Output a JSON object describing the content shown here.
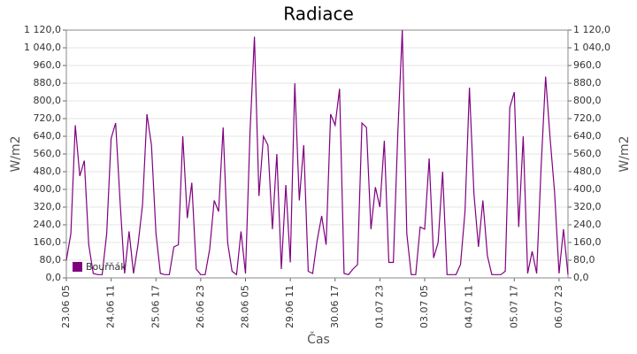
{
  "chart_data": {
    "type": "line",
    "title": "Radiace",
    "x_label": "Čas",
    "y_label": "W/m2",
    "categories": [
      "23.06 05",
      null,
      null,
      null,
      null,
      null,
      null,
      null,
      null,
      null,
      "24.06 11",
      null,
      null,
      null,
      null,
      null,
      null,
      null,
      null,
      null,
      "25.06 17",
      null,
      null,
      null,
      null,
      null,
      null,
      null,
      null,
      null,
      "26.06 23",
      null,
      null,
      null,
      null,
      null,
      null,
      null,
      null,
      null,
      "28.06 05",
      null,
      null,
      null,
      null,
      null,
      null,
      null,
      null,
      null,
      "29.06 11",
      null,
      null,
      null,
      null,
      null,
      null,
      null,
      null,
      null,
      "30.06 17",
      null,
      null,
      null,
      null,
      null,
      null,
      null,
      null,
      null,
      "01.07 23",
      null,
      null,
      null,
      null,
      null,
      null,
      null,
      null,
      null,
      "03.07 05",
      null,
      null,
      null,
      null,
      null,
      null,
      null,
      null,
      null,
      "04.07 11",
      null,
      null,
      null,
      null,
      null,
      null,
      null,
      null,
      null,
      "05.07 17",
      null,
      null,
      null,
      null,
      null,
      null,
      null,
      null,
      null,
      "06.07 23",
      null,
      null
    ],
    "series": [
      {
        "name": "Bouřňák",
        "color": "#800080",
        "values": [
          80,
          200,
          690,
          460,
          530,
          150,
          20,
          15,
          15,
          200,
          630,
          700,
          340,
          20,
          210,
          20,
          150,
          330,
          740,
          600,
          200,
          20,
          15,
          15,
          140,
          150,
          640,
          270,
          430,
          40,
          15,
          15,
          130,
          350,
          300,
          680,
          160,
          30,
          15,
          210,
          20,
          660,
          1090,
          370,
          640,
          600,
          220,
          560,
          40,
          420,
          70,
          880,
          350,
          600,
          30,
          20,
          170,
          280,
          150,
          740,
          690,
          855,
          20,
          15,
          40,
          60,
          700,
          680,
          220,
          410,
          320,
          620,
          70,
          70,
          650,
          1120,
          200,
          15,
          15,
          230,
          220,
          540,
          90,
          160,
          480,
          15,
          15,
          15,
          60,
          300,
          860,
          380,
          140,
          350,
          100,
          15,
          15,
          15,
          30,
          770,
          840,
          230,
          640,
          20,
          120,
          20,
          500,
          910,
          630,
          390,
          20,
          220,
          15
        ]
      }
    ],
    "ylim": [
      0,
      1120
    ],
    "yticks": [
      {
        "value": 0,
        "label": "0,0"
      },
      {
        "value": 80,
        "label": "80,0"
      },
      {
        "value": 160,
        "label": "160,0"
      },
      {
        "value": 240,
        "label": "240,0"
      },
      {
        "value": 320,
        "label": "320,0"
      },
      {
        "value": 400,
        "label": "400,0"
      },
      {
        "value": 480,
        "label": "480,0"
      },
      {
        "value": 560,
        "label": "560,0"
      },
      {
        "value": 640,
        "label": "640,0"
      },
      {
        "value": 720,
        "label": "720,0"
      },
      {
        "value": 800,
        "label": "800,0"
      },
      {
        "value": 880,
        "label": "880,0"
      },
      {
        "value": 960,
        "label": "960,0"
      },
      {
        "value": 1040,
        "label": "1 040,0"
      },
      {
        "value": 1120,
        "label": "1 120,0"
      }
    ],
    "grid": true,
    "legend": "bottom-left"
  }
}
